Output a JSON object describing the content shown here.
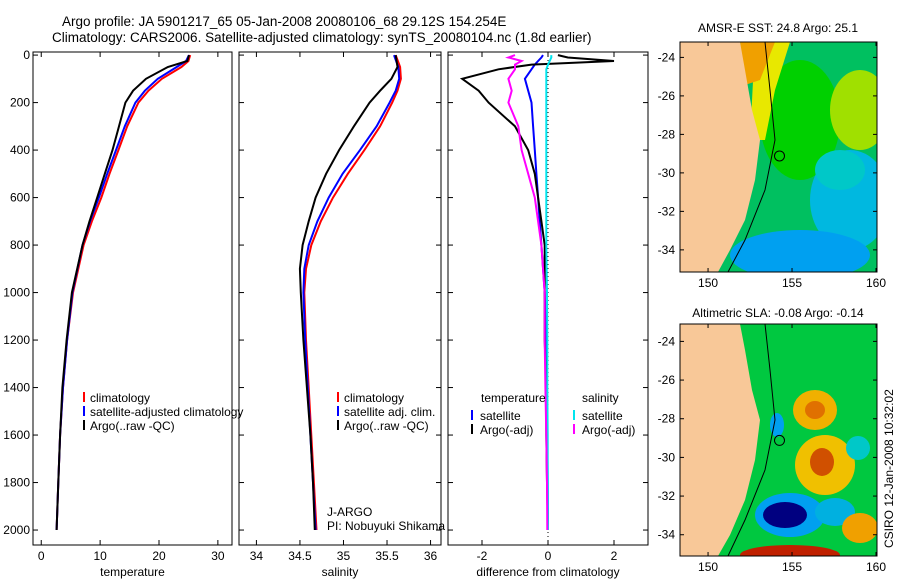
{
  "title_line1": "Argo profile: JA 5901217_65 05-Jan-2008 20080106_68 29.12S 154.254E",
  "title_line2": "Climatology: CARS2006. Satellite-adjusted climatology: synTS_20080104.nc (1.8d earlier)",
  "side_label": "CSIRO 12-Jan-2008 10:32:02",
  "colors": {
    "climatology": "#ff0000",
    "satellite": "#0000ff",
    "argo": "#000000",
    "sal_satellite": "#00e5ee",
    "sal_argo": "#ff00ff",
    "land": "#f8c898"
  },
  "chart_data": [
    {
      "type": "line",
      "xlabel": "temperature",
      "ylabel": "",
      "xlim": [
        -1.4,
        32.4
      ],
      "ylim": [
        -13,
        2063
      ],
      "y_reversed": true,
      "xticks": [
        0,
        10,
        20,
        30
      ],
      "yticks": [
        0,
        200,
        400,
        600,
        800,
        1000,
        1200,
        1400,
        1600,
        1800,
        2000
      ],
      "depth": [
        0,
        25,
        50,
        100,
        150,
        200,
        300,
        400,
        500,
        600,
        700,
        800,
        1000,
        1200,
        1400,
        1600,
        1800,
        2000
      ],
      "series": [
        {
          "name": "climatology",
          "color": "#ff0000",
          "values": [
            25.3,
            25.0,
            23.8,
            20.5,
            18.2,
            16.5,
            14.6,
            13.1,
            11.6,
            10.2,
            8.6,
            7.2,
            5.4,
            4.4,
            3.7,
            3.2,
            2.9,
            2.6
          ]
        },
        {
          "name": "satellite-adjusted climatology",
          "color": "#0000ff",
          "values": [
            25.1,
            24.6,
            23.0,
            19.8,
            17.6,
            16.0,
            14.2,
            12.7,
            11.2,
            9.8,
            8.3,
            7.0,
            5.3,
            4.4,
            3.7,
            3.2,
            2.9,
            2.6
          ]
        },
        {
          "name": "Argo(..raw -QC)",
          "color": "#000000",
          "values": [
            25.1,
            24.8,
            21.5,
            17.8,
            15.6,
            14.3,
            13.2,
            12.1,
            10.8,
            9.5,
            8.2,
            7.0,
            5.2,
            4.3,
            3.6,
            3.2,
            2.9,
            2.6
          ]
        }
      ],
      "legend": [
        "climatology",
        "satellite-adjusted climatology",
        "Argo(..raw -QC)"
      ]
    },
    {
      "type": "line",
      "xlabel": "salinity",
      "xlim": [
        33.8,
        36.12
      ],
      "ylim": [
        -13,
        2063
      ],
      "y_reversed": true,
      "xticks": [
        34,
        34.5,
        35,
        35.5,
        36
      ],
      "xticklabels": [
        "34",
        "34.5",
        "35",
        "35.5",
        "36"
      ],
      "depth": [
        0,
        50,
        100,
        150,
        200,
        300,
        400,
        500,
        600,
        700,
        800,
        900,
        1000,
        1200,
        1400,
        1600,
        1800,
        2000
      ],
      "series": [
        {
          "name": "climatology",
          "color": "#ff0000",
          "values": [
            35.6,
            35.65,
            35.66,
            35.62,
            35.56,
            35.42,
            35.24,
            35.05,
            34.88,
            34.74,
            34.63,
            34.57,
            34.55,
            34.57,
            34.6,
            34.63,
            34.66,
            34.69
          ]
        },
        {
          "name": "satellite adj. clim.",
          "color": "#0000ff",
          "values": [
            35.58,
            35.63,
            35.64,
            35.6,
            35.53,
            35.38,
            35.19,
            34.99,
            34.83,
            34.7,
            34.6,
            34.55,
            34.54,
            34.56,
            34.59,
            34.62,
            34.65,
            34.68
          ]
        },
        {
          "name": "Argo(..raw -QC)",
          "color": "#000000",
          "values": [
            35.6,
            35.62,
            35.55,
            35.42,
            35.3,
            35.12,
            34.95,
            34.8,
            34.68,
            34.6,
            34.53,
            34.5,
            34.51,
            34.54,
            34.58,
            34.62,
            34.65,
            34.67
          ]
        }
      ],
      "legend": [
        "climatology",
        "satellite adj. clim.",
        "Argo(..raw -QC)"
      ],
      "annotation": [
        "J-ARGO",
        "PI: Nobuyuki Shikama"
      ]
    },
    {
      "type": "line",
      "xlabel": "difference from climatology",
      "xlim": [
        -3.03,
        3.03
      ],
      "ylim": [
        -13,
        2063
      ],
      "y_reversed": true,
      "xticks": [
        -2,
        0,
        2
      ],
      "depth": [
        0,
        10,
        25,
        40,
        60,
        100,
        150,
        200,
        300,
        400,
        500,
        600,
        700,
        800,
        1000,
        1200,
        1400,
        1600,
        1800,
        2000
      ],
      "series": [
        {
          "name": "temperature satellite",
          "color": "#0000ff",
          "values": [
            -0.15,
            -0.2,
            -0.3,
            -0.4,
            -0.5,
            -0.7,
            -0.6,
            -0.5,
            -0.45,
            -0.4,
            -0.35,
            -0.3,
            -0.25,
            -0.2,
            -0.1,
            -0.05,
            -0.03,
            -0.02,
            -0.01,
            0
          ]
        },
        {
          "name": "temperature Argo(-adj)",
          "color": "#000000",
          "values": [
            0.3,
            0.6,
            2.0,
            -0.5,
            -1.5,
            -2.6,
            -2.1,
            -1.8,
            -1.0,
            -0.6,
            -0.4,
            -0.3,
            -0.2,
            -0.1,
            -0.1,
            -0.1,
            -0.05,
            -0.05,
            -0.03,
            0
          ]
        },
        {
          "name": "salinity satellite",
          "color": "#00e5ee",
          "values": [
            0.1,
            0.1,
            0.05,
            0,
            -0.05,
            -0.05,
            -0.05,
            -0.05,
            -0.05,
            -0.05,
            -0.05,
            -0.05,
            -0.05,
            -0.05,
            -0.03,
            -0.02,
            -0.02,
            -0.01,
            -0.01,
            0
          ]
        },
        {
          "name": "salinity Argo(-adj)",
          "color": "#ff00ff",
          "values": [
            -1.0,
            -1.2,
            -0.8,
            -1.0,
            -1.0,
            -1.2,
            -1.1,
            -1.2,
            -0.9,
            -0.8,
            -0.6,
            -0.4,
            -0.3,
            -0.2,
            -0.1,
            -0.1,
            -0.08,
            -0.05,
            -0.03,
            -0.02
          ]
        }
      ],
      "legend_headers": [
        "temperature",
        "salinity"
      ],
      "legend": [
        "satellite",
        "Argo(-adj)",
        "satellite",
        "Argo(-adj)"
      ]
    }
  ],
  "maps": [
    {
      "title": "AMSR-E SST: 24.8 Argo: 25.1",
      "xticks": [
        150,
        155,
        160
      ],
      "yticks": [
        -24,
        -26,
        -28,
        -30,
        -32,
        -34
      ],
      "xlim": [
        148.33,
        160.06
      ],
      "ylim": [
        -35.15,
        -23.2
      ],
      "argo_pos": [
        154.254,
        -29.12
      ]
    },
    {
      "title": "Altimetric SLA: -0.08 Argo: -0.14",
      "xticks": [
        150,
        155,
        160
      ],
      "yticks": [
        -24,
        -26,
        -28,
        -30,
        -32,
        -34
      ],
      "xlim": [
        148.33,
        160.06
      ],
      "ylim": [
        -35.1,
        -23.1
      ],
      "argo_pos": [
        154.254,
        -29.12
      ]
    }
  ]
}
